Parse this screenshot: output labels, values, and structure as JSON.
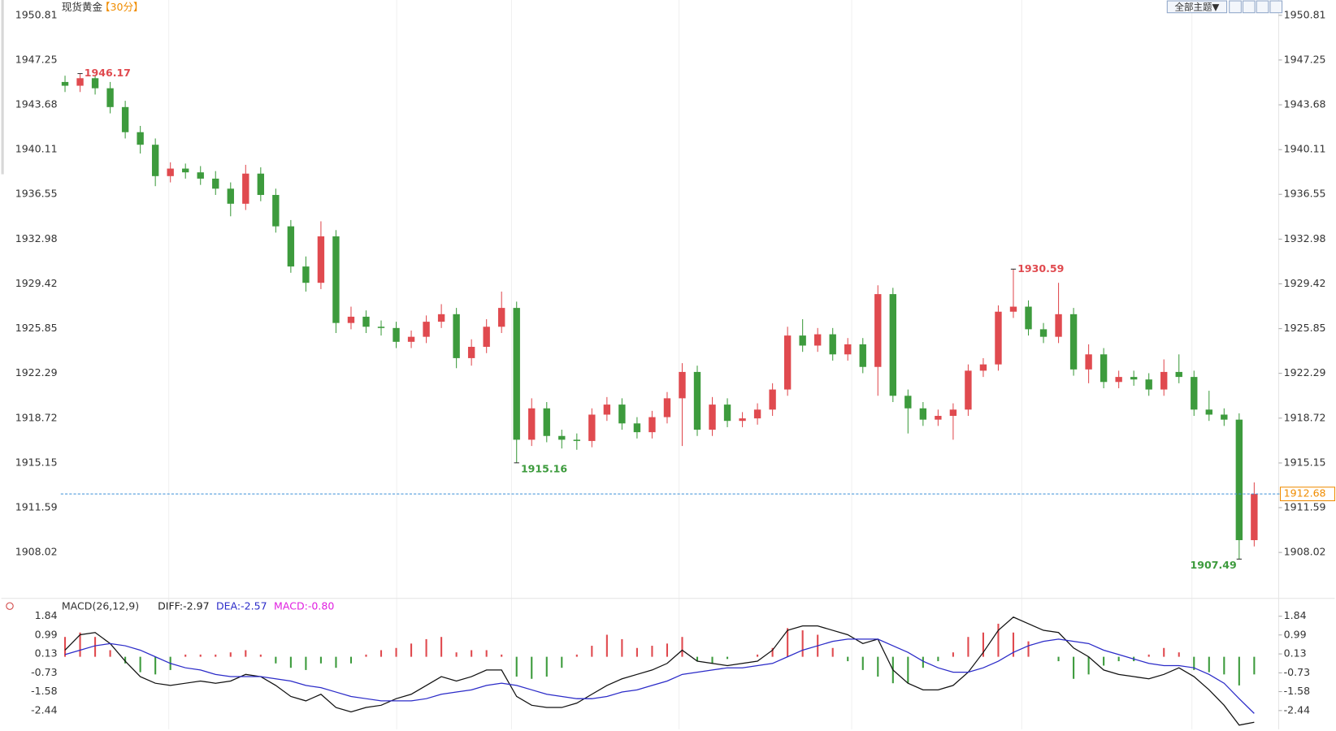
{
  "chart_data": {
    "type": "candlestick",
    "title": "现货黄金",
    "period": "【30分】",
    "toolbar": "全部主题▼",
    "up_color": "#e04a4f",
    "down_color": "#3d9b3d",
    "ylim": [
      1904.63,
      1952.03
    ],
    "yticks": [
      1950.81,
      1947.25,
      1943.68,
      1940.11,
      1936.55,
      1932.98,
      1929.42,
      1925.85,
      1922.29,
      1918.72,
      1915.15,
      1911.59,
      1908.02
    ],
    "ohlc": [
      [
        1945.5,
        1946.0,
        1944.7,
        1945.2
      ],
      [
        1945.2,
        1946.17,
        1944.7,
        1945.8
      ],
      [
        1945.8,
        1946.0,
        1944.5,
        1945.0
      ],
      [
        1945.0,
        1945.5,
        1943.0,
        1943.5
      ],
      [
        1943.5,
        1944.0,
        1941.0,
        1941.5
      ],
      [
        1941.5,
        1942.0,
        1939.8,
        1940.5
      ],
      [
        1940.5,
        1941.0,
        1937.2,
        1938.0
      ],
      [
        1938.0,
        1939.1,
        1937.5,
        1938.6
      ],
      [
        1938.6,
        1939.0,
        1937.8,
        1938.3
      ],
      [
        1938.3,
        1938.8,
        1937.3,
        1937.8
      ],
      [
        1937.8,
        1938.4,
        1936.5,
        1937.0
      ],
      [
        1937.0,
        1937.5,
        1934.8,
        1935.8
      ],
      [
        1935.8,
        1938.9,
        1935.3,
        1938.2
      ],
      [
        1938.2,
        1938.7,
        1936.0,
        1936.5
      ],
      [
        1936.5,
        1937.0,
        1933.5,
        1934.0
      ],
      [
        1934.0,
        1934.5,
        1930.3,
        1930.8
      ],
      [
        1930.8,
        1931.6,
        1928.8,
        1929.5
      ],
      [
        1929.5,
        1934.4,
        1929.0,
        1933.2
      ],
      [
        1933.2,
        1933.7,
        1925.5,
        1926.3
      ],
      [
        1926.3,
        1927.6,
        1925.8,
        1926.8
      ],
      [
        1926.8,
        1927.3,
        1925.5,
        1926.0
      ],
      [
        1926.0,
        1926.5,
        1925.3,
        1925.9
      ],
      [
        1925.9,
        1926.4,
        1924.3,
        1924.8
      ],
      [
        1924.8,
        1925.7,
        1924.3,
        1925.2
      ],
      [
        1925.2,
        1926.9,
        1924.7,
        1926.4
      ],
      [
        1926.4,
        1927.8,
        1925.9,
        1927.0
      ],
      [
        1927.0,
        1927.5,
        1922.7,
        1923.5
      ],
      [
        1923.5,
        1925.0,
        1922.9,
        1924.4
      ],
      [
        1924.4,
        1926.6,
        1923.9,
        1926.0
      ],
      [
        1926.0,
        1928.8,
        1925.5,
        1927.5
      ],
      [
        1927.5,
        1928.0,
        1915.16,
        1917.0
      ],
      [
        1917.0,
        1920.3,
        1916.5,
        1919.5
      ],
      [
        1919.5,
        1920.0,
        1916.8,
        1917.3
      ],
      [
        1917.3,
        1917.8,
        1916.3,
        1917.0
      ],
      [
        1917.0,
        1917.5,
        1916.2,
        1916.9
      ],
      [
        1916.9,
        1919.5,
        1916.4,
        1919.0
      ],
      [
        1919.0,
        1920.4,
        1918.5,
        1919.8
      ],
      [
        1919.8,
        1920.3,
        1917.8,
        1918.3
      ],
      [
        1918.3,
        1918.8,
        1917.1,
        1917.6
      ],
      [
        1917.6,
        1919.3,
        1917.1,
        1918.8
      ],
      [
        1918.8,
        1920.8,
        1918.3,
        1920.3
      ],
      [
        1920.3,
        1923.1,
        1916.5,
        1922.4
      ],
      [
        1922.4,
        1922.9,
        1917.3,
        1917.8
      ],
      [
        1917.8,
        1920.4,
        1917.3,
        1919.8
      ],
      [
        1919.8,
        1920.3,
        1918.0,
        1918.5
      ],
      [
        1918.5,
        1919.2,
        1918.0,
        1918.7
      ],
      [
        1918.7,
        1919.9,
        1918.2,
        1919.4
      ],
      [
        1919.4,
        1921.5,
        1918.9,
        1921.0
      ],
      [
        1921.0,
        1926.0,
        1920.5,
        1925.3
      ],
      [
        1925.3,
        1926.6,
        1924.0,
        1924.5
      ],
      [
        1924.5,
        1925.9,
        1924.0,
        1925.4
      ],
      [
        1925.4,
        1925.9,
        1923.3,
        1923.8
      ],
      [
        1923.8,
        1925.1,
        1923.3,
        1924.6
      ],
      [
        1924.6,
        1925.1,
        1922.3,
        1922.8
      ],
      [
        1922.8,
        1929.3,
        1920.5,
        1928.6
      ],
      [
        1928.6,
        1929.1,
        1920.0,
        1920.5
      ],
      [
        1920.5,
        1921.0,
        1917.5,
        1919.5
      ],
      [
        1919.5,
        1920.0,
        1918.1,
        1918.6
      ],
      [
        1918.6,
        1919.4,
        1918.1,
        1918.9
      ],
      [
        1918.9,
        1919.9,
        1917.0,
        1919.4
      ],
      [
        1919.4,
        1923.0,
        1918.9,
        1922.5
      ],
      [
        1922.5,
        1923.5,
        1922.0,
        1923.0
      ],
      [
        1923.0,
        1927.7,
        1922.5,
        1927.2
      ],
      [
        1927.2,
        1930.59,
        1926.7,
        1927.6
      ],
      [
        1927.6,
        1928.1,
        1925.3,
        1925.8
      ],
      [
        1925.8,
        1926.3,
        1924.7,
        1925.2
      ],
      [
        1925.2,
        1929.5,
        1924.7,
        1927.0
      ],
      [
        1927.0,
        1927.5,
        1922.1,
        1922.6
      ],
      [
        1922.6,
        1924.6,
        1921.5,
        1923.8
      ],
      [
        1923.8,
        1924.3,
        1921.1,
        1921.6
      ],
      [
        1921.6,
        1922.5,
        1921.1,
        1922.0
      ],
      [
        1922.0,
        1922.5,
        1921.3,
        1921.8
      ],
      [
        1921.8,
        1922.3,
        1920.5,
        1921.0
      ],
      [
        1921.0,
        1923.4,
        1920.5,
        1922.4
      ],
      [
        1922.4,
        1923.8,
        1921.5,
        1922.0
      ],
      [
        1922.0,
        1922.5,
        1918.9,
        1919.4
      ],
      [
        1919.4,
        1920.9,
        1918.5,
        1919.0
      ],
      [
        1919.0,
        1919.5,
        1918.1,
        1918.6
      ],
      [
        1918.6,
        1919.1,
        1907.49,
        1909.0
      ],
      [
        1909.0,
        1913.6,
        1908.5,
        1912.68
      ]
    ],
    "macd": {
      "type": "macd",
      "name": "MACD(26,12,9)",
      "legend": [
        "DIFF:-2.97",
        "DEA:-2.57",
        "MACD:-0.80"
      ],
      "legend_colors": [
        "#222222",
        "#2b2bc8",
        "#e020e0"
      ],
      "ylim": [
        -3.29,
        2.61
      ],
      "yticks": [
        1.84,
        0.99,
        0.13,
        -0.73,
        -1.58,
        -2.44
      ],
      "diff_color": "#111111",
      "dea_color": "#2b2bc8",
      "diff": [
        0.3,
        1.0,
        1.1,
        0.6,
        -0.2,
        -0.9,
        -1.2,
        -1.3,
        -1.2,
        -1.1,
        -1.2,
        -1.1,
        -0.8,
        -0.9,
        -1.3,
        -1.8,
        -2.0,
        -1.7,
        -2.3,
        -2.5,
        -2.3,
        -2.2,
        -1.9,
        -1.7,
        -1.3,
        -0.9,
        -1.1,
        -0.9,
        -0.6,
        -0.6,
        -1.8,
        -2.2,
        -2.3,
        -2.3,
        -2.1,
        -1.7,
        -1.3,
        -1.0,
        -0.8,
        -0.6,
        -0.3,
        0.3,
        -0.2,
        -0.3,
        -0.4,
        -0.3,
        -0.2,
        0.3,
        1.2,
        1.4,
        1.4,
        1.2,
        1.0,
        0.6,
        0.8,
        -0.6,
        -1.2,
        -1.5,
        -1.5,
        -1.3,
        -0.7,
        0.2,
        1.2,
        1.8,
        1.5,
        1.2,
        1.1,
        0.4,
        0.0,
        -0.6,
        -0.8,
        -0.9,
        -1.0,
        -0.8,
        -0.5,
        -0.9,
        -1.5,
        -2.2,
        -3.1,
        -2.97
      ],
      "dea": [
        0.1,
        0.3,
        0.5,
        0.6,
        0.5,
        0.3,
        0.0,
        -0.3,
        -0.5,
        -0.6,
        -0.8,
        -0.9,
        -0.9,
        -0.9,
        -1.0,
        -1.1,
        -1.3,
        -1.4,
        -1.6,
        -1.8,
        -1.9,
        -2.0,
        -2.0,
        -2.0,
        -1.9,
        -1.7,
        -1.6,
        -1.5,
        -1.3,
        -1.2,
        -1.3,
        -1.5,
        -1.7,
        -1.8,
        -1.9,
        -1.9,
        -1.8,
        -1.6,
        -1.5,
        -1.3,
        -1.1,
        -0.8,
        -0.7,
        -0.6,
        -0.5,
        -0.5,
        -0.4,
        -0.3,
        0.0,
        0.3,
        0.5,
        0.7,
        0.8,
        0.8,
        0.8,
        0.5,
        0.2,
        -0.2,
        -0.5,
        -0.7,
        -0.7,
        -0.5,
        -0.2,
        0.2,
        0.5,
        0.7,
        0.8,
        0.7,
        0.6,
        0.3,
        0.1,
        -0.1,
        -0.3,
        -0.4,
        -0.4,
        -0.5,
        -0.8,
        -1.2,
        -1.9,
        -2.57
      ],
      "hist": [
        0.9,
        1.1,
        0.9,
        0.3,
        -0.3,
        -0.7,
        -0.8,
        -0.6,
        0.1,
        0.1,
        0.1,
        0.2,
        0.3,
        0.1,
        -0.3,
        -0.5,
        -0.6,
        -0.3,
        -0.5,
        -0.3,
        0.1,
        0.3,
        0.4,
        0.6,
        0.8,
        0.9,
        0.2,
        0.3,
        0.3,
        0.1,
        -0.9,
        -1.0,
        -0.9,
        -0.5,
        0.1,
        0.5,
        1.0,
        0.8,
        0.4,
        0.5,
        0.6,
        0.9,
        -0.2,
        -0.3,
        -0.1,
        0.0,
        0.1,
        0.4,
        1.3,
        1.2,
        1.0,
        0.4,
        -0.2,
        -0.6,
        -0.9,
        -1.2,
        -1.2,
        -0.5,
        -0.2,
        0.2,
        0.9,
        1.1,
        1.5,
        1.1,
        0.7,
        0.0,
        -0.2,
        -1.0,
        -0.8,
        -0.4,
        -0.2,
        -0.2,
        0.1,
        0.4,
        0.2,
        -0.6,
        -0.7,
        -0.8,
        -1.3,
        -0.8
      ]
    }
  }
}
